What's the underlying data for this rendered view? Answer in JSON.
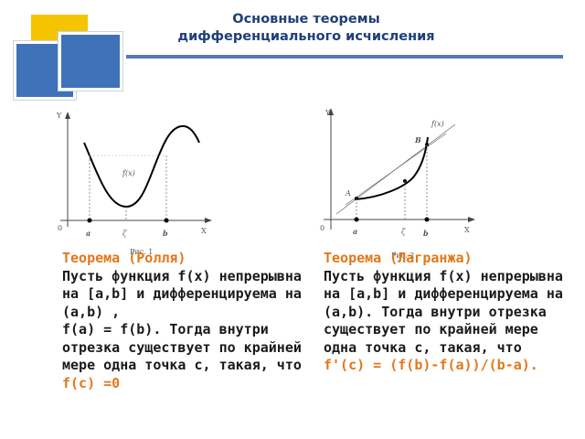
{
  "title": {
    "line1": "Основные теоремы",
    "line2": "дифференциального исчисления"
  },
  "rolle": {
    "title": "Теорема  (Ролля)",
    "body": "Пусть функция f(x) непрерывна на [a,b] и дифференцируема на (a,b) ,",
    "body2": "f(a) = f(b). Тогда внутри отрезка существует по крайней мере одна точка с, такая, что ",
    "condition": "f(c) =0",
    "graph": {
      "y_axis": "Y",
      "x_axis": "X",
      "origin": "0",
      "a": "a",
      "b": "b",
      "zeta": "ζ",
      "func": "f(x)",
      "caption": "Рис. 1"
    }
  },
  "lagrange": {
    "title": "Теорема  (Лагранжа)",
    "body": "Пусть функция f(x) непрерывна на [a,b] и дифференцируема на (a,b). Тогда внутри отрезка существует по крайней мере одна точка с, такая, что",
    "condition": "f'(c) = (f(b)-f(a))/(b-a).",
    "graph": {
      "y_axis": "Y",
      "x_axis": "X",
      "origin": "0",
      "a": "a",
      "b": "b",
      "zeta": "ζ",
      "A": "A",
      "B": "B",
      "func": "f(x)",
      "caption": "Рис. 2"
    }
  },
  "colors": {
    "title": "#1f3f79",
    "accent": "#e0781b",
    "deco_yellow": "#f5c400",
    "deco_blue": "#3f72b8"
  }
}
